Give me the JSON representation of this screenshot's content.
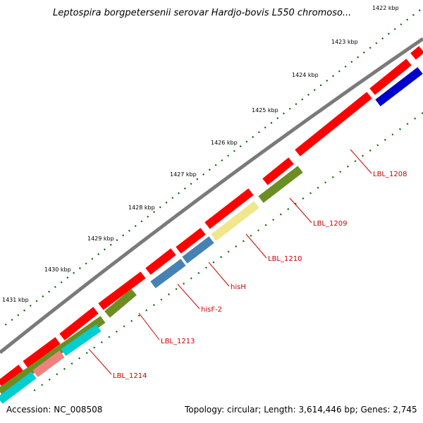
{
  "title": "Leptospira borgpetersenii serovar Hardjo-bovis L550 chromoso...",
  "footer": {
    "accession": "Accession: NC_008508",
    "topology": "Topology: circular; Length: 3,614,446 bp; Genes: 2,745"
  },
  "ticks": [
    "1422 kbp",
    "1423 kbp",
    "1424 kbp",
    "1425 kbp",
    "1426 kbp",
    "1427 kbp",
    "1428 kbp",
    "1429 kbp",
    "1430 kbp",
    "1431 kbp"
  ],
  "gene_labels": [
    "LBL_1208",
    "LBL_1209",
    "LBL_1210",
    "hisH",
    "hisF-2",
    "LBL_1213",
    "LBL_1214"
  ],
  "colors": {
    "backbone": "#7a7a7a",
    "forward_feature": "#ff0000",
    "olive_gene": "#6b8e23",
    "yellow_gene": "#f0e68c",
    "steelblue_gene": "#4682b4",
    "blue_gene": "#0000cd",
    "cyan_gene": "#00ced1",
    "salmon_gene": "#f08080",
    "tick_green": "#006400",
    "label_red": "#cc0000"
  }
}
